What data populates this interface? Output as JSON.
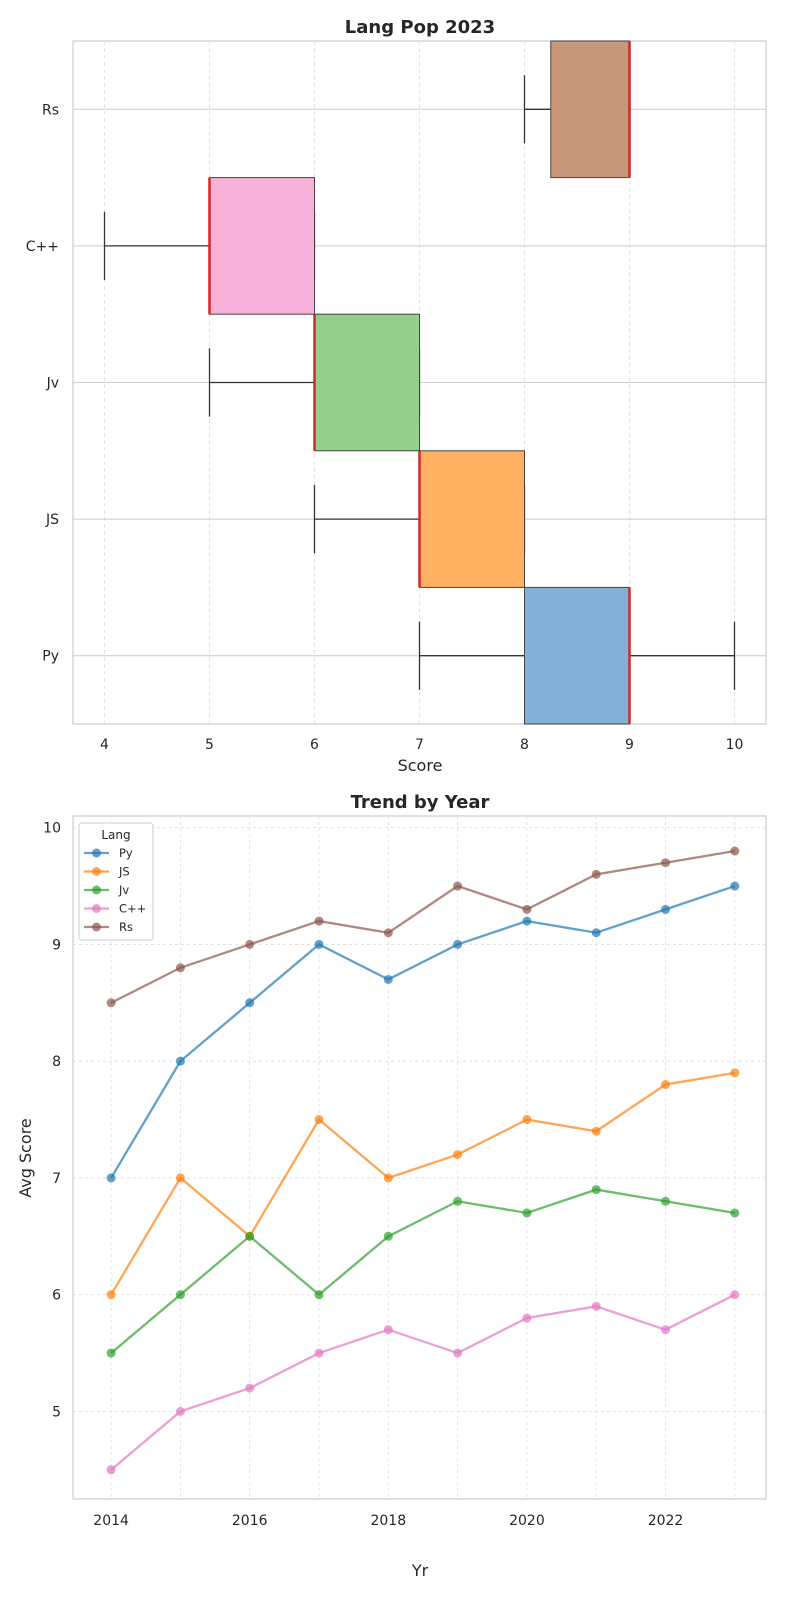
{
  "chart_data": [
    {
      "type": "box",
      "orientation": "horizontal",
      "title": "Lang Pop 2023",
      "xlabel": "Score",
      "ylabel": "",
      "xlim": [
        3.7,
        10.3
      ],
      "xticks": [
        4,
        5,
        6,
        7,
        8,
        9,
        10
      ],
      "grid": true,
      "median_color": "#d62728",
      "categories": [
        "Py",
        "JS",
        "Jv",
        "C++",
        "Rs"
      ],
      "boxes": [
        {
          "name": "Py",
          "whisker_low": 7,
          "q1": 8,
          "median": 9,
          "q3": 9,
          "whisker_high": 10,
          "color": "#82b0d6"
        },
        {
          "name": "JS",
          "whisker_low": 6,
          "q1": 7,
          "median": 7,
          "q3": 8,
          "whisker_high": 8,
          "color": "#ffb061"
        },
        {
          "name": "Jv",
          "whisker_low": 5,
          "q1": 6,
          "median": 6,
          "q3": 7,
          "whisker_high": 7,
          "color": "#94cf8c"
        },
        {
          "name": "C++",
          "whisker_low": 4,
          "q1": 5,
          "median": 5,
          "q3": 6,
          "whisker_high": 6,
          "color": "#f8b1d8"
        },
        {
          "name": "Rs",
          "whisker_low": 8,
          "q1": 8.25,
          "median": 9,
          "q3": 9,
          "whisker_high": 9,
          "color": "#c6977a"
        }
      ]
    },
    {
      "type": "line",
      "title": "Trend by Year",
      "xlabel": "Yr",
      "ylabel": "Avg Score",
      "xlim": [
        2013.45,
        2023.45
      ],
      "ylim": [
        4.25,
        10.1
      ],
      "xticks": [
        2014,
        2016,
        2018,
        2020,
        2022
      ],
      "yticks": [
        5,
        6,
        7,
        8,
        9,
        10
      ],
      "grid": true,
      "legend": {
        "title": "Lang",
        "position": "top-left"
      },
      "x": [
        2014,
        2015,
        2016,
        2017,
        2018,
        2019,
        2020,
        2021,
        2022,
        2023
      ],
      "series": [
        {
          "name": "Py",
          "color": "#1f77b4",
          "values": [
            7,
            8,
            8.5,
            9,
            8.7,
            9,
            9.2,
            9.1,
            9.3,
            9.5
          ]
        },
        {
          "name": "JS",
          "color": "#ff7f0e",
          "values": [
            6,
            7,
            6.5,
            7.5,
            7,
            7.2,
            7.5,
            7.4,
            7.8,
            7.9
          ]
        },
        {
          "name": "Jv",
          "color": "#2ca02c",
          "values": [
            5.5,
            6,
            6.5,
            6,
            6.5,
            6.8,
            6.7,
            6.9,
            6.8,
            6.7
          ]
        },
        {
          "name": "C++",
          "color": "#e377c2",
          "values": [
            4.5,
            5,
            5.2,
            5.5,
            5.7,
            5.5,
            5.8,
            5.9,
            5.7,
            6
          ]
        },
        {
          "name": "Rs",
          "color": "#8c564b",
          "values": [
            8.5,
            8.8,
            9,
            9.2,
            9.1,
            9.5,
            9.3,
            9.6,
            9.7,
            9.8
          ]
        }
      ]
    }
  ]
}
